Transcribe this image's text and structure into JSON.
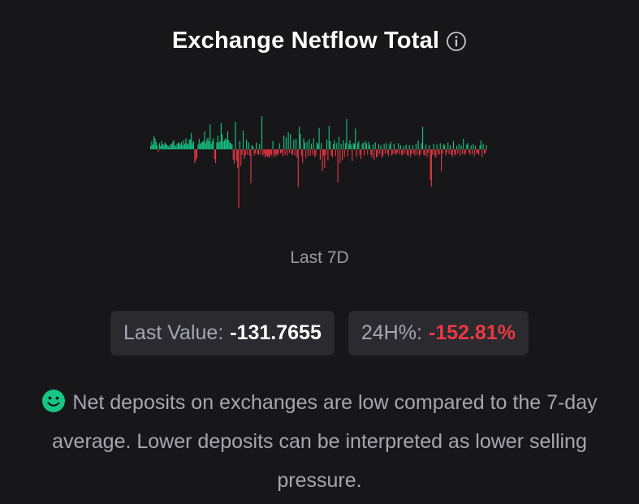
{
  "header": {
    "title": "Exchange Netflow Total",
    "info_icon": "info-circle-icon"
  },
  "chart_data": {
    "type": "bar",
    "title": "",
    "xlabel": "",
    "ylabel": "",
    "grid": false,
    "positive_color": "#16c784",
    "negative_color": "#ea3943",
    "values": [
      0.5,
      1.2,
      0.7,
      1.9,
      1.6,
      1.1,
      0.6,
      -0.4,
      0.9,
      0.5,
      1.2,
      0.8,
      0.6,
      1.0,
      0.8,
      0.6,
      0.5,
      0.3,
      0.8,
      0.7,
      1.1,
      1.3,
      0.6,
      0.4,
      0.8,
      1.0,
      0.9,
      0.7,
      1.1,
      0.6,
      1.3,
      0.8,
      1.6,
      0.9,
      0.7,
      1.4,
      1.5,
      2.4,
      0.9,
      1.2,
      -2.0,
      -1.6,
      -1.3,
      0.7,
      1.5,
      0.8,
      1.0,
      1.1,
      1.2,
      2.6,
      0.9,
      1.4,
      1.7,
      1.2,
      3.6,
      0.8,
      1.2,
      1.6,
      -1.4,
      -2.0,
      1.0,
      2.0,
      1.0,
      1.2,
      3.8,
      2.2,
      1.1,
      1.3,
      1.6,
      1.4,
      2.6,
      1.3,
      1.0,
      0.9,
      0.7,
      -1.5,
      -2.1,
      4.0,
      -1.6,
      -2.7,
      -8.5,
      1.2,
      -2.4,
      -0.8,
      2.7,
      -1.4,
      -0.9,
      1.4,
      -0.8,
      1.0,
      -0.9,
      -4.9,
      0.6,
      0.4,
      -0.9,
      -0.6,
      1.0,
      -0.7,
      -0.8,
      0.8,
      -0.8,
      4.8,
      -0.9,
      -0.6,
      -1.2,
      -0.9,
      -1.1,
      -1.0,
      -1.2,
      -0.7,
      -0.9,
      1.2,
      -1.1,
      -0.7,
      -1.0,
      -0.6,
      -0.8,
      0.9,
      -0.6,
      -0.5,
      -1.0,
      2.0,
      -0.8,
      1.7,
      -0.9,
      2.5,
      -0.5,
      2.2,
      -0.7,
      -0.8,
      1.4,
      -0.9,
      1.5,
      -1.2,
      -5.5,
      3.3,
      2.2,
      -1.0,
      -2.0,
      1.6,
      1.0,
      -1.3,
      1.1,
      -1.0,
      1.5,
      -0.9,
      0.8,
      -0.8,
      1.6,
      -1.1,
      -0.9,
      1.0,
      0.8,
      3.1,
      -1.5,
      0.9,
      -3.2,
      -0.9,
      -2.7,
      -0.8,
      1.4,
      -1.6,
      3.4,
      1.2,
      -0.9,
      -1.2,
      0.8,
      1.3,
      -1.0,
      0.9,
      -4.8,
      1.8,
      -2.0,
      0.8,
      -1.6,
      1.3,
      -1.1,
      0.9,
      4.4,
      -1.0,
      0.8,
      1.3,
      0.7,
      -1.7,
      0.9,
      0.8,
      3.0,
      -1.1,
      0.9,
      1.2,
      -0.8,
      -1.4,
      0.8,
      1.0,
      -0.9,
      1.2,
      0.9,
      -0.8,
      1.1,
      0.6,
      -0.8,
      -1.2,
      0.7,
      -1.5,
      1.0,
      -1.2,
      -1.0,
      0.8,
      -0.7,
      0.6,
      -1.2,
      -0.9,
      0.8,
      -0.7,
      0.9,
      -0.6,
      -1.0,
      0.7,
      1.1,
      -0.9,
      -0.7,
      0.8,
      -0.6,
      -0.8,
      -0.5,
      0.9,
      -0.7,
      0.6,
      -0.9,
      -0.8,
      0.5,
      -0.6,
      0.7,
      -0.8,
      -1.0,
      0.6,
      -1.1,
      -0.7,
      0.6,
      -0.6,
      -0.9,
      0.8,
      -0.8,
      1.3,
      -1.0,
      -0.7,
      0.9,
      3.3,
      -0.8,
      -0.9,
      0.7,
      -1.1,
      -0.5,
      0.6,
      -4.5,
      -5.4,
      -0.8,
      0.8,
      -0.9,
      -1.2,
      0.7,
      -0.6,
      -0.8,
      0.9,
      -3.2,
      -0.7,
      0.8,
      0.6,
      -0.9,
      -0.5,
      1.0,
      -0.7,
      0.6,
      -0.8,
      -1.1,
      1.2,
      -0.7,
      -0.9,
      0.5,
      -0.6,
      0.8,
      -0.9,
      0.6,
      -0.7,
      1.5,
      -0.8,
      -0.6,
      0.7,
      0.9,
      -0.5,
      -0.8,
      0.6,
      -0.7,
      0.8,
      -1.0,
      0.5,
      -0.6,
      -0.5,
      -0.8,
      0.6,
      1.3,
      -1.1,
      0.8,
      -0.7,
      -0.5,
      0.6
    ]
  },
  "period_label": "Last 7D",
  "stats": {
    "last_value_label": "Last Value:",
    "last_value": "-131.7655",
    "change_label": "24H%:",
    "change_value": "-152.81%"
  },
  "description": {
    "icon": "smiley-face-icon",
    "icon_color": "#16c784",
    "text": "Net deposits on exchanges are low compared to the 7-day average. Lower deposits can be interpreted as lower selling pressure."
  }
}
